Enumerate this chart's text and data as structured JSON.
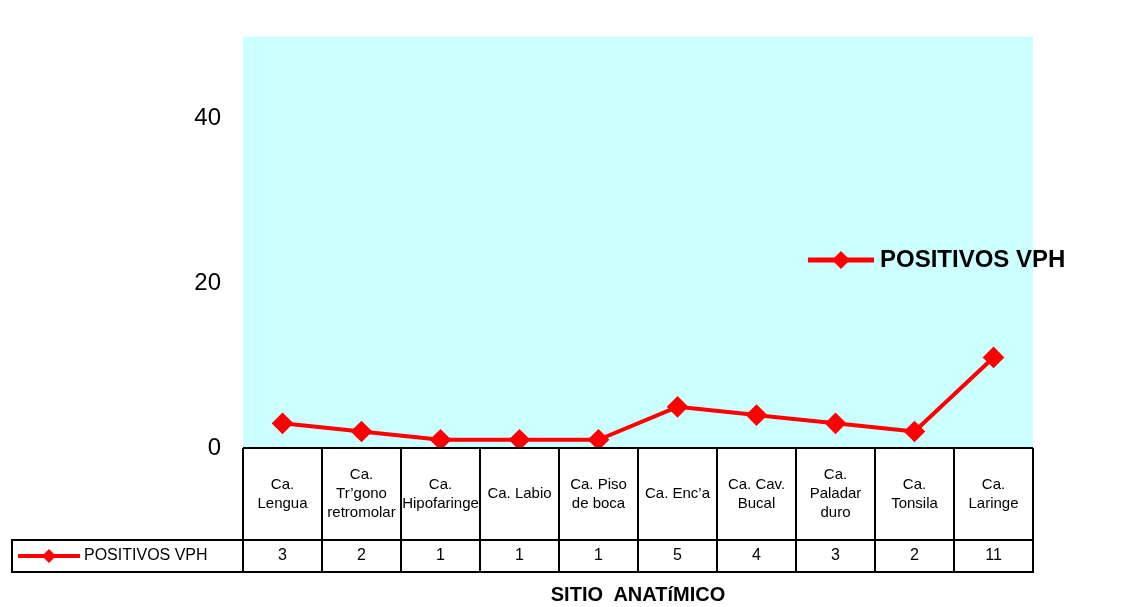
{
  "chart_data": {
    "type": "line",
    "xlabel": "SITIO  ANATíMICO",
    "categories": [
      "Ca. Lengua",
      "Ca. Tr’gono retromolar",
      "Ca. Hipofaringe",
      "Ca. Labio",
      "Ca. Piso de boca",
      "Ca. Enc’a",
      "Ca. Cav. Bucal",
      "Ca. Paladar duro",
      "Ca. Tonsila",
      "Ca. Laringe"
    ],
    "series": [
      {
        "name": "POSITIVOS VPH",
        "color": "#ff0000",
        "values": [
          3,
          2,
          1,
          1,
          1,
          5,
          4,
          3,
          2,
          11
        ]
      }
    ],
    "ylim": [
      0,
      50
    ],
    "yticks": [
      0,
      20,
      40
    ],
    "grid": false,
    "legend": "right",
    "marker": "diamond",
    "data_labels": true
  }
}
